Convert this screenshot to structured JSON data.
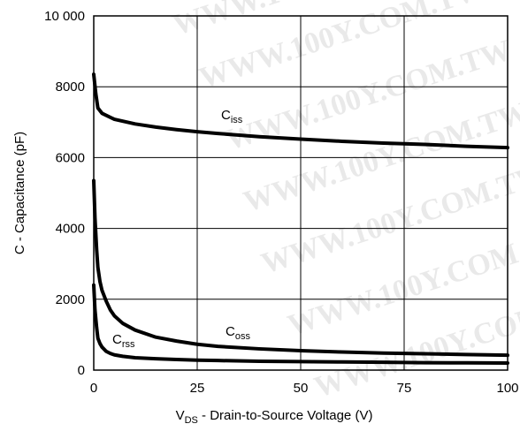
{
  "chart_data": {
    "type": "line",
    "xlabel": {
      "main": "V",
      "sub": "DS",
      "rest": " - Drain-to-Source Voltage (V)"
    },
    "ylabel": "C - Capacitance (pF)",
    "xlim": [
      0,
      100
    ],
    "ylim": [
      0,
      10000
    ],
    "xticks": [
      "0",
      "25",
      "50",
      "75",
      "100"
    ],
    "yticks": [
      "0",
      "2000",
      "4000",
      "6000",
      "8000",
      "10 000"
    ],
    "grid": true,
    "series": [
      {
        "name": "Ciss",
        "label_main": "C",
        "label_sub": "iss",
        "x": [
          0,
          0.5,
          1,
          2,
          5,
          10,
          15,
          20,
          25,
          30,
          40,
          50,
          60,
          70,
          80,
          90,
          100
        ],
        "values": [
          8350,
          7800,
          7400,
          7250,
          7080,
          6950,
          6860,
          6790,
          6730,
          6680,
          6590,
          6520,
          6460,
          6410,
          6370,
          6320,
          6280
        ]
      },
      {
        "name": "Coss",
        "label_main": "C",
        "label_sub": "oss",
        "x": [
          0,
          0.3,
          0.7,
          1,
          1.5,
          2,
          3,
          4,
          5,
          7,
          10,
          15,
          20,
          25,
          30,
          40,
          50,
          60,
          70,
          80,
          90,
          100
        ],
        "values": [
          5350,
          4300,
          3400,
          2900,
          2500,
          2250,
          1950,
          1700,
          1530,
          1320,
          1130,
          930,
          820,
          730,
          670,
          600,
          550,
          510,
          480,
          460,
          440,
          420
        ]
      },
      {
        "name": "Crss",
        "label_main": "C",
        "label_sub": "rss",
        "x": [
          0,
          0.3,
          0.7,
          1,
          1.5,
          2,
          3,
          4,
          5,
          7,
          10,
          15,
          20,
          25,
          30,
          40,
          50,
          60,
          70,
          80,
          90,
          100
        ],
        "values": [
          2400,
          1700,
          1200,
          900,
          750,
          650,
          530,
          470,
          430,
          390,
          350,
          320,
          300,
          280,
          270,
          250,
          240,
          230,
          220,
          210,
          205,
          200
        ]
      }
    ],
    "watermark": "WWW.100Y.COM.TW"
  }
}
